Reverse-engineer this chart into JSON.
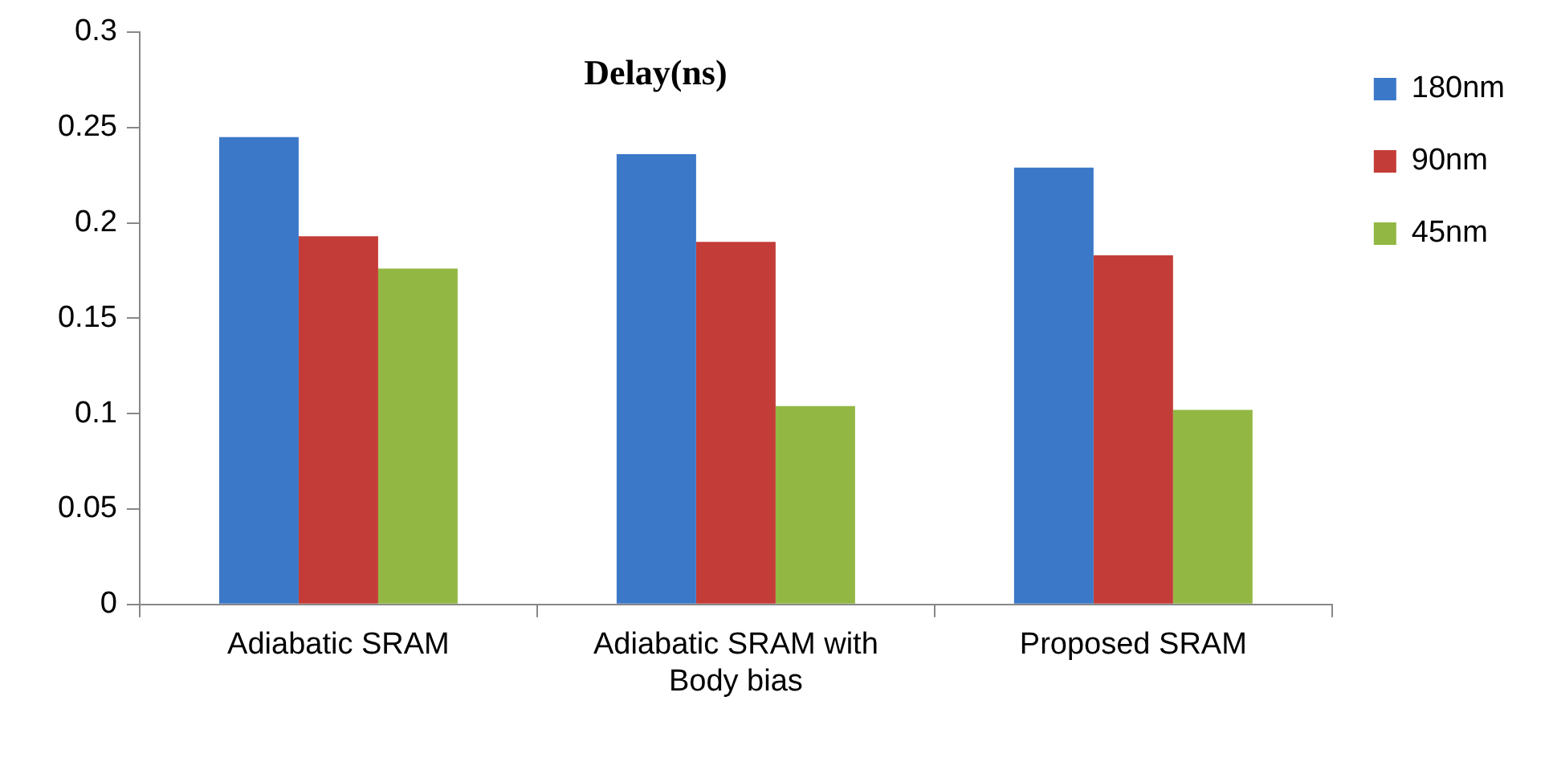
{
  "chart_data": {
    "type": "bar",
    "title": "Delay(ns)",
    "categories": [
      "Adiabatic SRAM",
      "Adiabatic SRAM with Body bias",
      "Proposed SRAM"
    ],
    "series": [
      {
        "name": "180nm",
        "color": "#3b78c8",
        "values": [
          0.245,
          0.236,
          0.229
        ]
      },
      {
        "name": "90nm",
        "color": "#c43c38",
        "values": [
          0.193,
          0.19,
          0.183
        ]
      },
      {
        "name": "45nm",
        "color": "#92b843",
        "values": [
          0.176,
          0.104,
          0.102
        ]
      }
    ],
    "ylim": [
      0,
      0.3
    ],
    "yticks": [
      0,
      0.05,
      0.1,
      0.15,
      0.2,
      0.25,
      0.3
    ],
    "grid": false,
    "legend": "top right"
  }
}
